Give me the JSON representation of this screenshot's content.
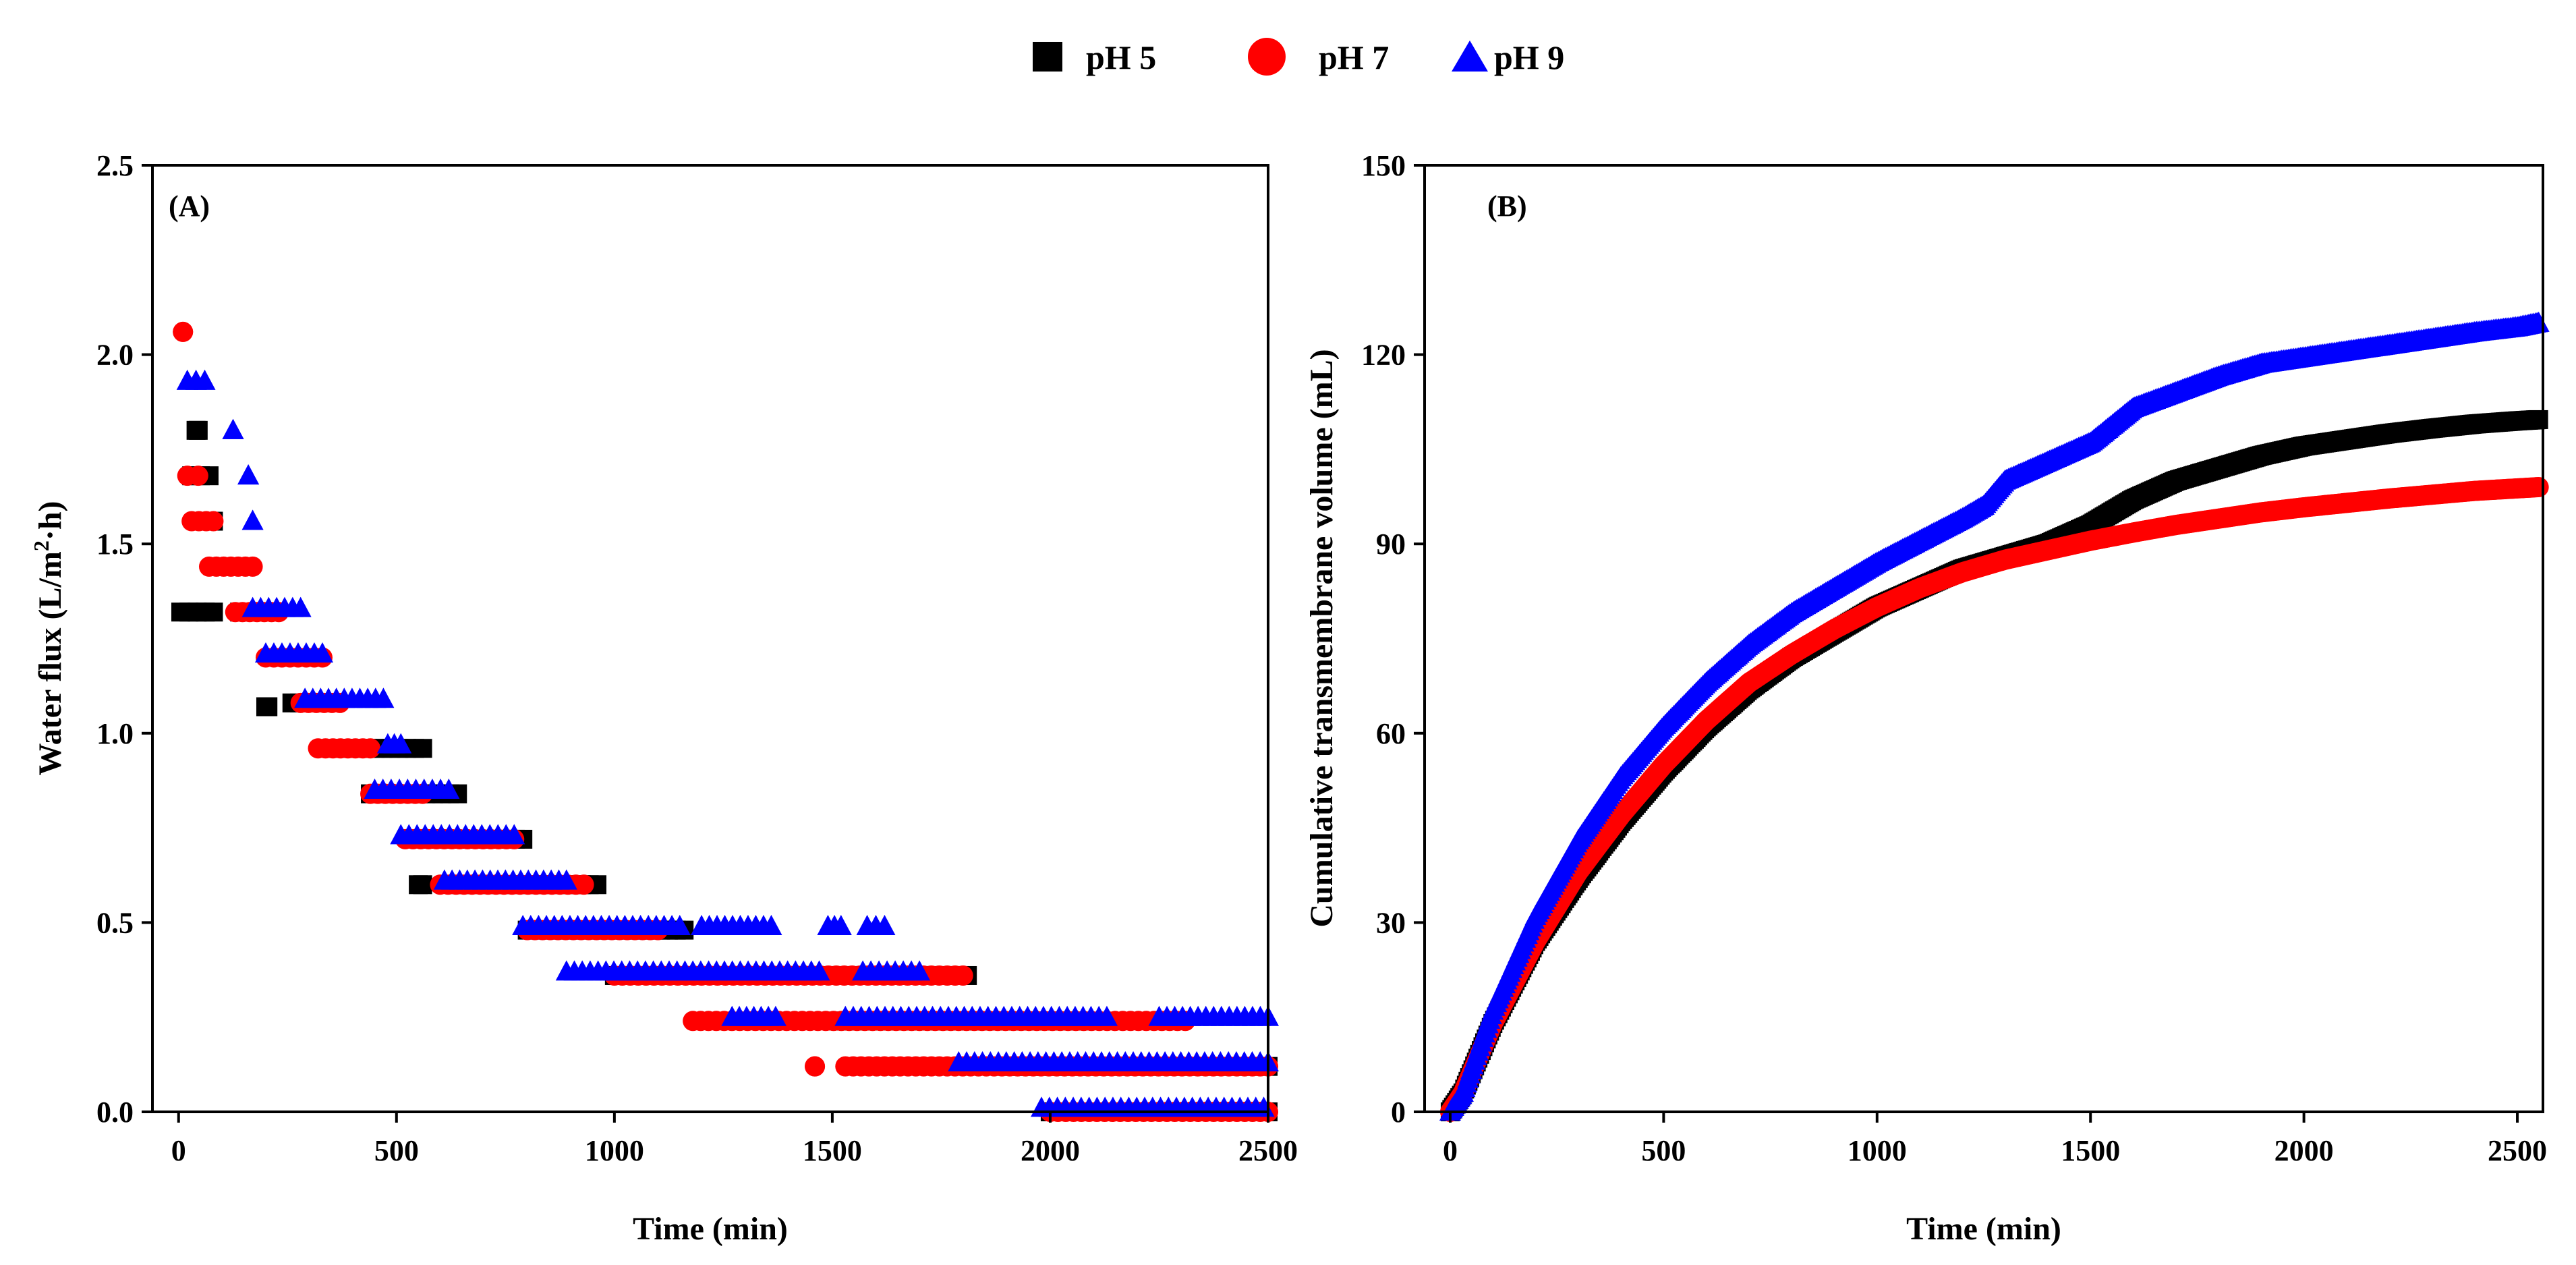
{
  "legend": {
    "items": [
      {
        "label": "pH 5",
        "marker": "square",
        "color": "#000000"
      },
      {
        "label": "pH 7",
        "marker": "circle",
        "color": "#ff0000"
      },
      {
        "label": "pH 9",
        "marker": "triangle",
        "color": "#0000ff"
      }
    ],
    "placement": "top-center"
  },
  "chart_data": [
    {
      "panel": "(A)",
      "type": "scatter",
      "xlabel": "Time (min)",
      "ylabel_parts": [
        "Water flux (L/m",
        "2",
        "·h)"
      ],
      "xlim": [
        -60,
        2500
      ],
      "ylim": [
        0,
        2.5
      ],
      "xticks": [
        0,
        500,
        1000,
        1500,
        2000,
        2500
      ],
      "yticks": [
        0.0,
        0.5,
        1.0,
        1.5,
        2.0,
        2.5
      ],
      "ytick_labels": [
        "0.0",
        "0.5",
        "1.0",
        "1.5",
        "2.0",
        "2.5"
      ],
      "grid": false,
      "series": [
        {
          "name": "pH 5",
          "color": "#000000",
          "marker": "square",
          "segments": [
            {
              "x_start": 5,
              "x_end": 80,
              "y": 1.32
            },
            {
              "x_start": 30,
              "x_end": 70,
              "y": 1.68
            },
            {
              "x_start": 40,
              "x_end": 45,
              "y": 1.8
            },
            {
              "x_start": 50,
              "x_end": 80,
              "y": 1.56
            },
            {
              "x_start": 140,
              "x_end": 175,
              "y": 1.32
            },
            {
              "x_start": 200,
              "x_end": 205,
              "y": 1.07
            },
            {
              "x_start": 260,
              "x_end": 330,
              "y": 1.08
            },
            {
              "x_start": 360,
              "x_end": 560,
              "y": 0.96
            },
            {
              "x_start": 440,
              "x_end": 640,
              "y": 0.84
            },
            {
              "x_start": 550,
              "x_end": 560,
              "y": 0.6
            },
            {
              "x_start": 580,
              "x_end": 790,
              "y": 0.72
            },
            {
              "x_start": 640,
              "x_end": 960,
              "y": 0.6
            },
            {
              "x_start": 800,
              "x_end": 1160,
              "y": 0.48
            },
            {
              "x_start": 1000,
              "x_end": 1810,
              "y": 0.36
            },
            {
              "x_start": 1500,
              "x_end": 2080,
              "y": 0.24
            },
            {
              "x_start": 1900,
              "x_end": 2500,
              "y": 0.12
            },
            {
              "x_start": 2000,
              "x_end": 2500,
              "y": 0.0
            }
          ]
        },
        {
          "name": "pH 7",
          "color": "#ff0000",
          "marker": "circle",
          "segments": [
            {
              "x_start": 10,
              "x_end": 10,
              "y": 2.06
            },
            {
              "x_start": 20,
              "x_end": 45,
              "y": 1.68
            },
            {
              "x_start": 30,
              "x_end": 80,
              "y": 1.56
            },
            {
              "x_start": 70,
              "x_end": 170,
              "y": 1.44
            },
            {
              "x_start": 130,
              "x_end": 230,
              "y": 1.32
            },
            {
              "x_start": 200,
              "x_end": 330,
              "y": 1.2
            },
            {
              "x_start": 280,
              "x_end": 370,
              "y": 1.08
            },
            {
              "x_start": 320,
              "x_end": 440,
              "y": 0.96
            },
            {
              "x_start": 440,
              "x_end": 560,
              "y": 0.84
            },
            {
              "x_start": 520,
              "x_end": 770,
              "y": 0.72
            },
            {
              "x_start": 600,
              "x_end": 930,
              "y": 0.6
            },
            {
              "x_start": 800,
              "x_end": 1100,
              "y": 0.48
            },
            {
              "x_start": 1000,
              "x_end": 1800,
              "y": 0.36
            },
            {
              "x_start": 1180,
              "x_end": 2310,
              "y": 0.24
            },
            {
              "x_start": 1460,
              "x_end": 1460,
              "y": 0.12
            },
            {
              "x_start": 1530,
              "x_end": 2500,
              "y": 0.12
            },
            {
              "x_start": 2000,
              "x_end": 2500,
              "y": 0.0
            }
          ]
        },
        {
          "name": "pH 9",
          "color": "#0000ff",
          "marker": "triangle",
          "segments": [
            {
              "x_start": 20,
              "x_end": 60,
              "y": 1.93
            },
            {
              "x_start": 125,
              "x_end": 125,
              "y": 1.8
            },
            {
              "x_start": 160,
              "x_end": 160,
              "y": 1.68
            },
            {
              "x_start": 170,
              "x_end": 170,
              "y": 1.56
            },
            {
              "x_start": 170,
              "x_end": 280,
              "y": 1.33
            },
            {
              "x_start": 200,
              "x_end": 330,
              "y": 1.21
            },
            {
              "x_start": 290,
              "x_end": 470,
              "y": 1.09
            },
            {
              "x_start": 480,
              "x_end": 510,
              "y": 0.97
            },
            {
              "x_start": 450,
              "x_end": 620,
              "y": 0.85
            },
            {
              "x_start": 510,
              "x_end": 770,
              "y": 0.73
            },
            {
              "x_start": 610,
              "x_end": 890,
              "y": 0.61
            },
            {
              "x_start": 790,
              "x_end": 1150,
              "y": 0.49
            },
            {
              "x_start": 1200,
              "x_end": 1360,
              "y": 0.49
            },
            {
              "x_start": 1490,
              "x_end": 1520,
              "y": 0.49
            },
            {
              "x_start": 1580,
              "x_end": 1620,
              "y": 0.49
            },
            {
              "x_start": 890,
              "x_end": 1470,
              "y": 0.37
            },
            {
              "x_start": 1570,
              "x_end": 1700,
              "y": 0.37
            },
            {
              "x_start": 1270,
              "x_end": 1370,
              "y": 0.25
            },
            {
              "x_start": 1530,
              "x_end": 2130,
              "y": 0.25
            },
            {
              "x_start": 2250,
              "x_end": 2500,
              "y": 0.25
            },
            {
              "x_start": 1790,
              "x_end": 2500,
              "y": 0.13
            },
            {
              "x_start": 1980,
              "x_end": 2490,
              "y": 0.01
            }
          ]
        }
      ]
    },
    {
      "panel": "(B)",
      "type": "scatter",
      "xlabel": "Time (min)",
      "ylabel": "Cumulative transmembrane volume (mL)",
      "xlim": [
        -60,
        2560
      ],
      "ylim": [
        0,
        150
      ],
      "xticks": [
        0,
        500,
        1000,
        1500,
        2000,
        2500
      ],
      "yticks": [
        0,
        30,
        60,
        90,
        120,
        150
      ],
      "grid": false,
      "series": [
        {
          "name": "pH 5",
          "color": "#000000",
          "marker": "square",
          "x": [
            0,
            30,
            100,
            200,
            300,
            400,
            500,
            600,
            700,
            800,
            900,
            1000,
            1100,
            1200,
            1300,
            1400,
            1500,
            1600,
            1700,
            1800,
            1900,
            2000,
            2100,
            2200,
            2300,
            2400,
            2500,
            2550
          ],
          "y": [
            0,
            3,
            14,
            27,
            37,
            46,
            54,
            61,
            67,
            72,
            76,
            80,
            83,
            86,
            88,
            90,
            93,
            97,
            100,
            102,
            104,
            105.5,
            106.5,
            107.5,
            108.3,
            109,
            109.5,
            109.7
          ]
        },
        {
          "name": "pH 7",
          "color": "#ff0000",
          "marker": "circle",
          "x": [
            0,
            30,
            100,
            200,
            300,
            400,
            500,
            600,
            700,
            800,
            900,
            1000,
            1100,
            1200,
            1300,
            1400,
            1500,
            1600,
            1700,
            1800,
            1900,
            2000,
            2100,
            2200,
            2300,
            2400,
            2500,
            2550
          ],
          "y": [
            0,
            3,
            14,
            27,
            38,
            47,
            55,
            62,
            68,
            72.5,
            76.5,
            80,
            83,
            85.5,
            87.5,
            89,
            90.5,
            91.8,
            93,
            94,
            95,
            95.8,
            96.5,
            97.2,
            97.8,
            98.4,
            98.8,
            99
          ]
        },
        {
          "name": "pH 9",
          "color": "#0000ff",
          "marker": "triangle",
          "x": [
            0,
            30,
            100,
            200,
            300,
            400,
            500,
            600,
            700,
            800,
            900,
            1000,
            1100,
            1200,
            1250,
            1300,
            1400,
            1500,
            1600,
            1700,
            1800,
            1900,
            2000,
            2100,
            2200,
            2300,
            2400,
            2500,
            2550
          ],
          "y": [
            0,
            3,
            16,
            31,
            43,
            53,
            61,
            68,
            74,
            79,
            83,
            87,
            90.5,
            94,
            96,
            100,
            103,
            106,
            111.5,
            114,
            116.5,
            118.5,
            119.5,
            120.5,
            121.5,
            122.5,
            123.5,
            124.3,
            125
          ]
        }
      ]
    }
  ]
}
